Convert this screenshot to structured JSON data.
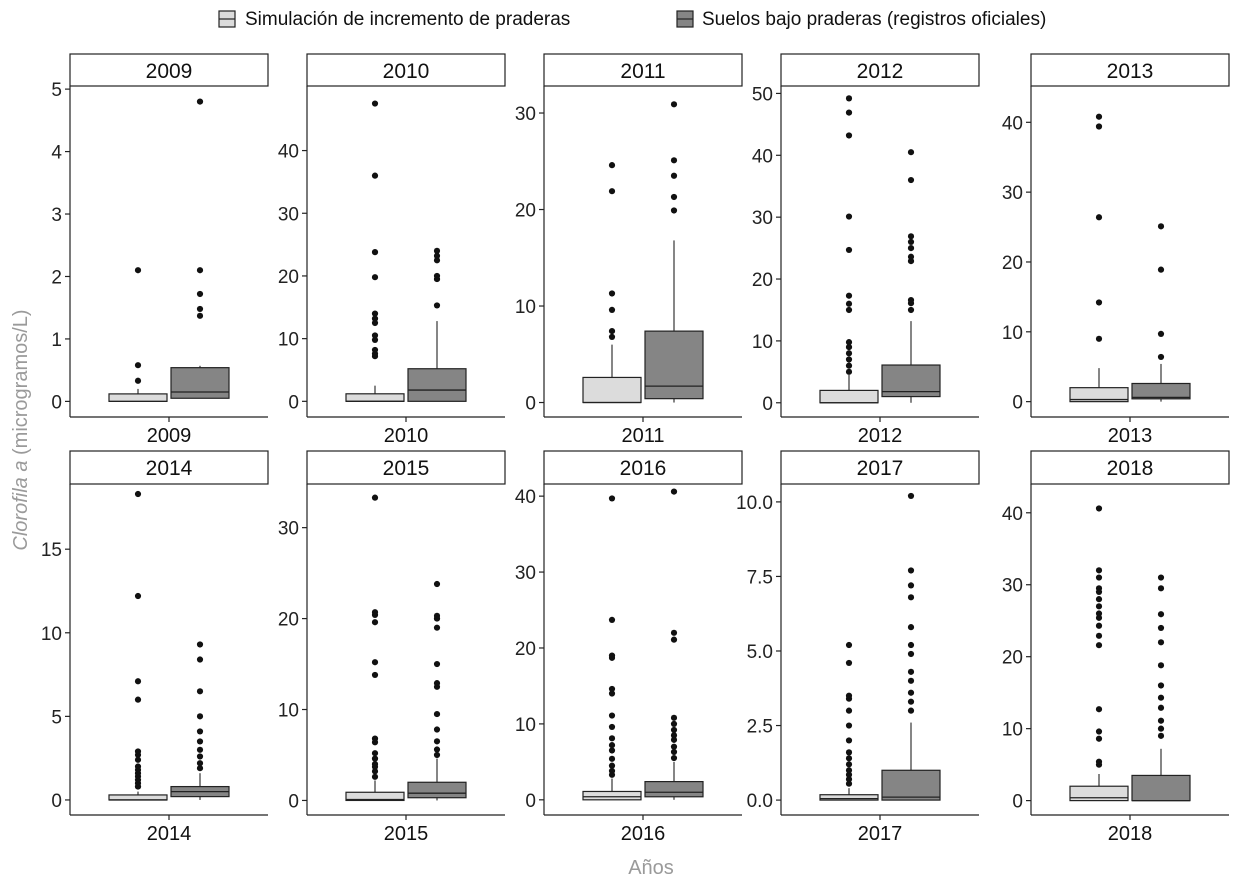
{
  "legend": {
    "items": [
      {
        "label": "Simulación de incremento de praderas",
        "color": "#dcdcdc"
      },
      {
        "label": "Suelos bajo praderas (registros oficiales)",
        "color": "#858585"
      }
    ]
  },
  "axes": {
    "xlabel": "Años",
    "ylabel_italic": "Clorofila a",
    "ylabel_rest": " (microgramos/L)"
  },
  "chart_data": {
    "type": "boxplot",
    "xlabel": "Años",
    "ylabel": "Clorofila a (microgramos/L)",
    "grid": false,
    "legend_position": "top",
    "series_names": [
      "Simulación de incremento de praderas",
      "Suelos bajo praderas (registros oficiales)"
    ],
    "series_colors": [
      "#dcdcdc",
      "#858585"
    ],
    "panels": [
      {
        "year": "2009",
        "ylim": [
          -0.25,
          5.05
        ],
        "ticks": [
          0,
          1,
          2,
          3,
          4,
          5
        ],
        "tick_labels": [
          "0",
          "1",
          "2",
          "3",
          "4",
          "5"
        ],
        "boxes": [
          {
            "min": 0,
            "q1": 0,
            "median": 0,
            "q3": 0.12,
            "max": 0.2,
            "outliers": [
              0.33,
              0.58,
              2.1
            ]
          },
          {
            "min": 0.05,
            "q1": 0.05,
            "median": 0.15,
            "q3": 0.54,
            "max": 0.57,
            "outliers": [
              1.37,
              1.48,
              1.72,
              2.1,
              4.8
            ]
          }
        ]
      },
      {
        "year": "2010",
        "ylim": [
          -2.5,
          50.3
        ],
        "ticks": [
          0,
          10,
          20,
          30,
          40
        ],
        "tick_labels": [
          "0",
          "10",
          "20",
          "30",
          "40"
        ],
        "boxes": [
          {
            "min": 0,
            "q1": 0,
            "median": 0,
            "q3": 1.2,
            "max": 2.5,
            "outliers": [
              7.2,
              7.6,
              8.2,
              9.8,
              10.5,
              12.5,
              13.2,
              14,
              19.8,
              23.8,
              36,
              47.5
            ]
          },
          {
            "min": 0,
            "q1": 0,
            "median": 1.8,
            "q3": 5.2,
            "max": 12.8,
            "outliers": [
              15.3,
              19.5,
              20,
              22.5,
              23.2,
              24
            ]
          }
        ]
      },
      {
        "year": "2011",
        "ylim": [
          -1.5,
          32.8
        ],
        "ticks": [
          0,
          10,
          20,
          30
        ],
        "tick_labels": [
          "0",
          "10",
          "20",
          "30"
        ],
        "boxes": [
          {
            "min": 0,
            "q1": 0,
            "median": 0,
            "q3": 2.6,
            "max": 6.0,
            "outliers": [
              6.8,
              7.4,
              9.6,
              11.3,
              21.9,
              24.6
            ]
          },
          {
            "min": 0,
            "q1": 0.4,
            "median": 1.7,
            "q3": 7.4,
            "max": 16.8,
            "outliers": [
              19.9,
              21.3,
              23.5,
              25.1,
              30.9
            ]
          }
        ]
      },
      {
        "year": "2012",
        "ylim": [
          -2.3,
          51.2
        ],
        "ticks": [
          0,
          10,
          20,
          30,
          40,
          50
        ],
        "tick_labels": [
          "0",
          "10",
          "20",
          "30",
          "40",
          "50"
        ],
        "boxes": [
          {
            "min": 0,
            "q1": 0,
            "median": 0,
            "q3": 2.0,
            "max": 4.5,
            "outliers": [
              5.0,
              6.0,
              7.0,
              8.0,
              9.0,
              9.8,
              15.0,
              16.0,
              17.3,
              24.7,
              30.1,
              43.2,
              46.9,
              49.2
            ]
          },
          {
            "min": 0,
            "q1": 1.0,
            "median": 1.8,
            "q3": 6.1,
            "max": 13.2,
            "outliers": [
              15.0,
              16.1,
              16.6,
              22.9,
              23.6,
              25.0,
              26.0,
              26.9,
              36.0,
              40.5
            ]
          }
        ]
      },
      {
        "year": "2013",
        "ylim": [
          -2.2,
          45.2
        ],
        "ticks": [
          0,
          10,
          20,
          30,
          40
        ],
        "tick_labels": [
          "0",
          "10",
          "20",
          "30",
          "40"
        ],
        "boxes": [
          {
            "min": 0,
            "q1": 0,
            "median": 0.3,
            "q3": 2.0,
            "max": 4.8,
            "outliers": [
              9.0,
              14.2,
              26.4,
              39.4,
              40.8
            ]
          },
          {
            "min": 0,
            "q1": 0.4,
            "median": 0.6,
            "q3": 2.6,
            "max": 5.4,
            "outliers": [
              6.4,
              9.7,
              18.9,
              25.1
            ]
          }
        ]
      },
      {
        "year": "2014",
        "ylim": [
          -0.9,
          18.9
        ],
        "ticks": [
          0,
          5,
          10,
          15
        ],
        "tick_labels": [
          "0",
          "5",
          "10",
          "15"
        ],
        "boxes": [
          {
            "min": 0,
            "q1": 0,
            "median": 0,
            "q3": 0.3,
            "max": 0.5,
            "outliers": [
              0.8,
              1.0,
              1.2,
              1.4,
              1.6,
              1.8,
              2.0,
              2.4,
              2.7,
              2.9,
              6.0,
              7.1,
              12.2,
              18.3
            ]
          },
          {
            "min": 0,
            "q1": 0.2,
            "median": 0.5,
            "q3": 0.8,
            "max": 1.6,
            "outliers": [
              1.9,
              2.2,
              2.6,
              3.0,
              3.5,
              4.1,
              5.0,
              6.5,
              8.4,
              9.3
            ]
          }
        ]
      },
      {
        "year": "2015",
        "ylim": [
          -1.6,
          34.8
        ],
        "ticks": [
          0,
          10,
          20,
          30
        ],
        "tick_labels": [
          "0",
          "10",
          "20",
          "30"
        ],
        "boxes": [
          {
            "min": 0,
            "q1": 0,
            "median": 0.1,
            "q3": 0.9,
            "max": 2.2,
            "outliers": [
              2.6,
              3.2,
              3.7,
              4.0,
              4.6,
              5.2,
              6.4,
              6.8,
              13.8,
              15.2,
              19.6,
              20.4,
              20.7,
              33.3
            ]
          },
          {
            "min": 0,
            "q1": 0.3,
            "median": 0.8,
            "q3": 2.0,
            "max": 4.6,
            "outliers": [
              5.0,
              5.6,
              6.5,
              7.8,
              9.5,
              12.5,
              12.9,
              15.0,
              19.0,
              20.0,
              20.3,
              23.8
            ]
          }
        ]
      },
      {
        "year": "2016",
        "ylim": [
          -2.0,
          41.6
        ],
        "ticks": [
          0,
          10,
          20,
          30,
          40
        ],
        "tick_labels": [
          "0",
          "10",
          "20",
          "30",
          "40"
        ],
        "boxes": [
          {
            "min": 0,
            "q1": 0,
            "median": 0.4,
            "q3": 1.1,
            "max": 2.8,
            "outliers": [
              3.3,
              3.8,
              4.5,
              5.4,
              6.5,
              7.2,
              8.1,
              9.6,
              11.1,
              14.0,
              14.6,
              18.7,
              19.0,
              23.7,
              39.7
            ]
          },
          {
            "min": 0,
            "q1": 0.4,
            "median": 1.0,
            "q3": 2.4,
            "max": 5.0,
            "outliers": [
              5.5,
              6.3,
              7.0,
              7.9,
              8.5,
              9.2,
              10.0,
              10.8,
              21.1,
              22.0,
              40.6
            ]
          }
        ]
      },
      {
        "year": "2017",
        "ylim": [
          -0.5,
          10.6
        ],
        "ticks": [
          0,
          2.5,
          5,
          7.5,
          10
        ],
        "tick_labels": [
          "0.0",
          "2.5",
          "5.0",
          "7.5",
          "10.0"
        ],
        "boxes": [
          {
            "min": 0,
            "q1": 0,
            "median": 0.05,
            "q3": 0.18,
            "max": 0.4,
            "outliers": [
              0.55,
              0.7,
              0.85,
              1.0,
              1.2,
              1.4,
              1.6,
              2.0,
              2.5,
              3.0,
              3.4,
              3.5,
              4.6,
              5.2
            ]
          },
          {
            "min": 0,
            "q1": 0,
            "median": 0.1,
            "q3": 1.0,
            "max": 2.6,
            "outliers": [
              3.0,
              3.3,
              3.6,
              4.0,
              4.3,
              4.9,
              5.2,
              5.8,
              6.8,
              7.2,
              7.7,
              10.2
            ]
          }
        ]
      },
      {
        "year": "2018",
        "ylim": [
          -2.0,
          44.0
        ],
        "ticks": [
          0,
          10,
          20,
          30,
          40
        ],
        "tick_labels": [
          "0",
          "10",
          "20",
          "30",
          "40"
        ],
        "boxes": [
          {
            "min": 0,
            "q1": 0,
            "median": 0.4,
            "q3": 2.0,
            "max": 3.7,
            "outliers": [
              5.0,
              5.4,
              8.6,
              9.6,
              12.7,
              21.6,
              22.9,
              24.3,
              25.4,
              26.0,
              27.0,
              28.0,
              29.0,
              29.5,
              31.0,
              32.0,
              40.6
            ]
          },
          {
            "min": 0,
            "q1": 0,
            "median": 0,
            "q3": 3.5,
            "max": 7.2,
            "outliers": [
              9.0,
              10.0,
              11.1,
              12.9,
              14.3,
              16.0,
              18.8,
              22.0,
              24.0,
              25.9,
              29.5,
              31.0
            ]
          }
        ]
      }
    ]
  }
}
